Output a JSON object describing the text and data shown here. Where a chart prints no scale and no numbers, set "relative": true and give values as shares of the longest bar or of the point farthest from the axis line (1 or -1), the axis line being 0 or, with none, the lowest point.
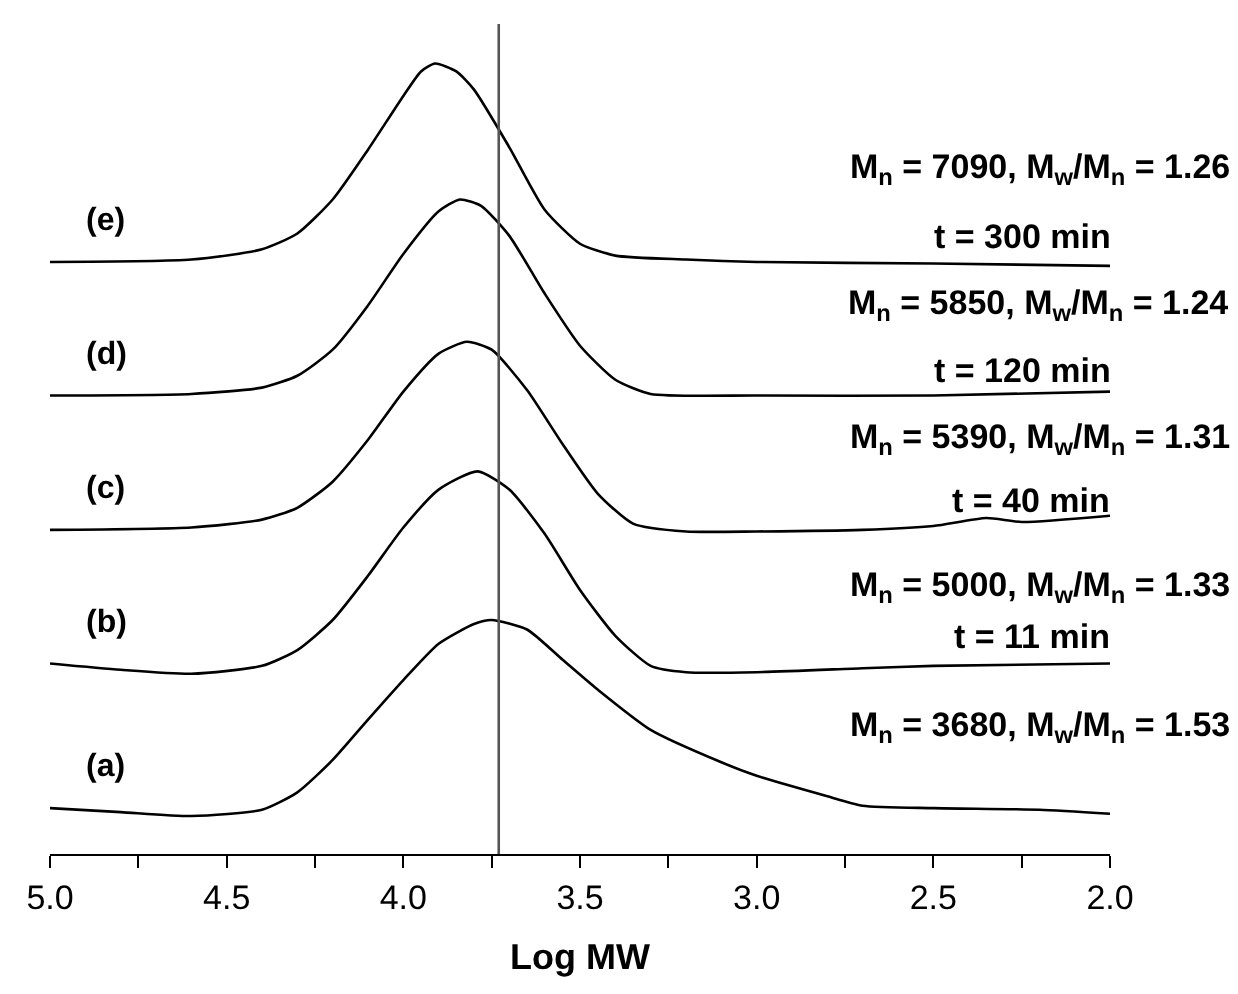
{
  "chart_data": {
    "type": "line",
    "relative": true,
    "xlabel": "Log MW",
    "xlim": [
      5.0,
      2.0
    ],
    "xticks": [
      {
        "value": 5.0,
        "label": "5.0"
      },
      {
        "value": 4.75,
        "label": null
      },
      {
        "value": 4.5,
        "label": "4.5"
      },
      {
        "value": 4.25,
        "label": null
      },
      {
        "value": 4.0,
        "label": "4.0"
      },
      {
        "value": 3.75,
        "label": null
      },
      {
        "value": 3.5,
        "label": "3.5"
      },
      {
        "value": 3.25,
        "label": null
      },
      {
        "value": 3.0,
        "label": "3.0"
      },
      {
        "value": 2.75,
        "label": null
      },
      {
        "value": 2.5,
        "label": "2.5"
      },
      {
        "value": 2.25,
        "label": null
      },
      {
        "value": 2.0,
        "label": "2.0"
      }
    ],
    "tick_labels": "x",
    "legend": false,
    "marker": "none",
    "line_style": "solid",
    "series": [
      {
        "name": "(a)",
        "color": "#000000",
        "x": [
          5.0,
          4.8,
          4.6,
          4.4,
          4.3,
          4.2,
          4.1,
          4.0,
          3.9,
          3.8,
          3.75,
          3.65,
          3.55,
          3.45,
          3.3,
          3.1,
          3.0,
          2.8,
          2.7,
          2.5,
          2.2,
          2.0
        ],
        "values": [
          0.058,
          0.053,
          0.048,
          0.056,
          0.078,
          0.119,
          0.17,
          0.22,
          0.266,
          0.291,
          0.296,
          0.284,
          0.246,
          0.208,
          0.157,
          0.116,
          0.099,
          0.073,
          0.061,
          0.058,
          0.056,
          0.051
        ]
      },
      {
        "name": "(b)",
        "color": "#000000",
        "x": [
          5.0,
          4.8,
          4.6,
          4.4,
          4.3,
          4.2,
          4.1,
          4.0,
          3.9,
          3.79,
          3.7,
          3.6,
          3.5,
          3.4,
          3.3,
          3.2,
          3.0,
          2.7,
          2.5,
          2.0
        ],
        "values": [
          0.241,
          0.233,
          0.228,
          0.238,
          0.258,
          0.296,
          0.352,
          0.413,
          0.461,
          0.484,
          0.461,
          0.405,
          0.334,
          0.276,
          0.238,
          0.23,
          0.23,
          0.235,
          0.238,
          0.241
        ]
      },
      {
        "name": "(c)",
        "color": "#000000",
        "x": [
          5.0,
          4.6,
          4.4,
          4.3,
          4.2,
          4.1,
          4.0,
          3.9,
          3.82,
          3.75,
          3.65,
          3.55,
          3.45,
          3.35,
          3.2,
          3.0,
          2.7,
          2.5,
          2.35,
          2.25,
          2.0
        ],
        "values": [
          0.41,
          0.413,
          0.423,
          0.438,
          0.471,
          0.524,
          0.585,
          0.633,
          0.648,
          0.638,
          0.587,
          0.519,
          0.456,
          0.418,
          0.408,
          0.408,
          0.41,
          0.415,
          0.425,
          0.42,
          0.428
        ]
      },
      {
        "name": "(d)",
        "color": "#000000",
        "x": [
          5.0,
          4.6,
          4.4,
          4.3,
          4.2,
          4.1,
          4.0,
          3.9,
          3.84,
          3.78,
          3.7,
          3.6,
          3.5,
          3.4,
          3.3,
          3.0,
          2.5,
          2.0
        ],
        "values": [
          0.58,
          0.582,
          0.59,
          0.605,
          0.638,
          0.694,
          0.759,
          0.813,
          0.828,
          0.82,
          0.782,
          0.709,
          0.643,
          0.6,
          0.582,
          0.58,
          0.58,
          0.585
        ]
      },
      {
        "name": "(e)",
        "color": "#000000",
        "x": [
          5.0,
          4.6,
          4.4,
          4.3,
          4.2,
          4.1,
          4.0,
          3.95,
          3.91,
          3.85,
          3.8,
          3.7,
          3.6,
          3.5,
          3.4,
          3.2,
          3.0,
          2.5,
          2.0
        ],
        "values": [
          0.749,
          0.752,
          0.765,
          0.785,
          0.828,
          0.891,
          0.959,
          0.99,
          1.0,
          0.99,
          0.967,
          0.894,
          0.815,
          0.772,
          0.757,
          0.752,
          0.749,
          0.747,
          0.744
        ]
      }
    ],
    "ref_lines": [
      {
        "axis": "x",
        "value": 3.73,
        "color": "#555555",
        "line_style": "solid"
      }
    ],
    "annotations": [
      "M$_{n}$ = 7090, M$_{w}$/M$_{n}$ = 1.26",
      "t = 300 min",
      "M$_{n}$ = 5850, M$_{w}$/M$_{n}$ = 1.24",
      "t = 120 min",
      "M$_{n}$ = 5390, M$_{w}$/M$_{n}$ = 1.31",
      "t = 40 min",
      "M$_{n}$ = 5000, M$_{w}$/M$_{n}$ = 1.33",
      "t = 11 min",
      "M$_{n}$ = 3680, M$_{w}$/M$_{n}$ = 1.53"
    ]
  }
}
